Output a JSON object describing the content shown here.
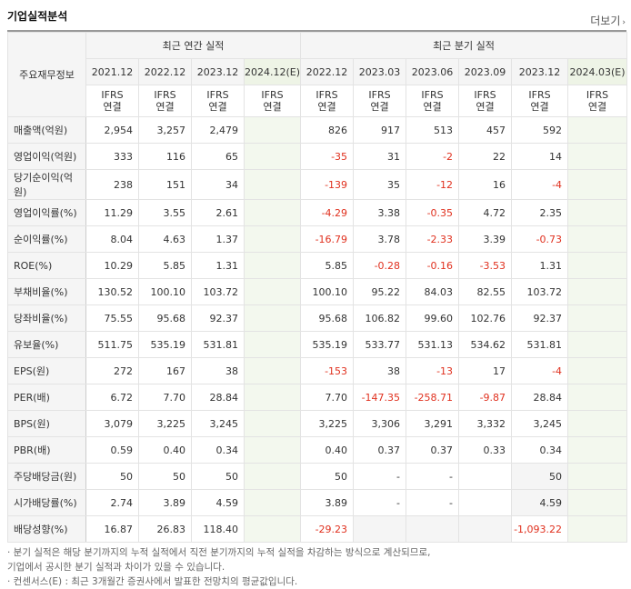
{
  "header": {
    "title": "기업실적분석",
    "more_label": "더보기",
    "more_arrow": "›"
  },
  "table": {
    "row_header": "주요재무정보",
    "annual_header": "최근 연간 실적",
    "quarter_header": "최근 분기 실적",
    "annual_periods": [
      "2021.12",
      "2022.12",
      "2023.12",
      "2024.12(E)"
    ],
    "quarter_periods": [
      "2022.12",
      "2023.03",
      "2023.06",
      "2023.09",
      "2023.12",
      "2024.03(E)"
    ],
    "ifrs_line1": "IFRS",
    "ifrs_line2": "연결",
    "rows": [
      {
        "label": "매출액(억원)",
        "values": [
          "2,954",
          "3,257",
          "2,479",
          "",
          "826",
          "917",
          "513",
          "457",
          "592",
          ""
        ]
      },
      {
        "label": "영업이익(억원)",
        "values": [
          "333",
          "116",
          "65",
          "",
          "-35",
          "31",
          "-2",
          "22",
          "14",
          ""
        ]
      },
      {
        "label": "당기순이익(억원)",
        "values": [
          "238",
          "151",
          "34",
          "",
          "-139",
          "35",
          "-12",
          "16",
          "-4",
          ""
        ]
      },
      {
        "label": "영업이익률(%)",
        "values": [
          "11.29",
          "3.55",
          "2.61",
          "",
          "-4.29",
          "3.38",
          "-0.35",
          "4.72",
          "2.35",
          ""
        ]
      },
      {
        "label": "순이익률(%)",
        "values": [
          "8.04",
          "4.63",
          "1.37",
          "",
          "-16.79",
          "3.78",
          "-2.33",
          "3.39",
          "-0.73",
          ""
        ]
      },
      {
        "label": "ROE(%)",
        "values": [
          "10.29",
          "5.85",
          "1.31",
          "",
          "5.85",
          "-0.28",
          "-0.16",
          "-3.53",
          "1.31",
          ""
        ]
      },
      {
        "label": "부채비율(%)",
        "values": [
          "130.52",
          "100.10",
          "103.72",
          "",
          "100.10",
          "95.22",
          "84.03",
          "82.55",
          "103.72",
          ""
        ]
      },
      {
        "label": "당좌비율(%)",
        "values": [
          "75.55",
          "95.68",
          "92.37",
          "",
          "95.68",
          "106.82",
          "99.60",
          "102.76",
          "92.37",
          ""
        ]
      },
      {
        "label": "유보율(%)",
        "values": [
          "511.75",
          "535.19",
          "531.81",
          "",
          "535.19",
          "533.77",
          "531.13",
          "534.62",
          "531.81",
          ""
        ]
      },
      {
        "label": "EPS(원)",
        "values": [
          "272",
          "167",
          "38",
          "",
          "-153",
          "38",
          "-13",
          "17",
          "-4",
          ""
        ]
      },
      {
        "label": "PER(배)",
        "values": [
          "6.72",
          "7.70",
          "28.84",
          "",
          "7.70",
          "-147.35",
          "-258.71",
          "-9.87",
          "28.84",
          ""
        ]
      },
      {
        "label": "BPS(원)",
        "values": [
          "3,079",
          "3,225",
          "3,245",
          "",
          "3,225",
          "3,306",
          "3,291",
          "3,332",
          "3,245",
          ""
        ]
      },
      {
        "label": "PBR(배)",
        "values": [
          "0.59",
          "0.40",
          "0.34",
          "",
          "0.40",
          "0.37",
          "0.37",
          "0.33",
          "0.34",
          ""
        ]
      },
      {
        "label": "주당배당금(원)",
        "values": [
          "50",
          "50",
          "50",
          "",
          "50",
          "-",
          "-",
          "",
          "50",
          ""
        ]
      },
      {
        "label": "시가배당률(%)",
        "values": [
          "2.74",
          "3.89",
          "4.59",
          "",
          "3.89",
          "-",
          "-",
          "",
          "4.59",
          ""
        ]
      },
      {
        "label": "배당성향(%)",
        "values": [
          "16.87",
          "26.83",
          "118.40",
          "",
          "-29.23",
          "",
          "",
          "",
          "-1,093.22",
          ""
        ]
      }
    ]
  },
  "notes": [
    "· 분기 실적은 해당 분기까지의 누적 실적에서 직전 분기까지의 누적 실적을 차감하는 방식으로 계산되므로,",
    "  기업에서 공시한 분기 실적과 차이가 있을 수 있습니다.",
    "· 컨센서스(E) : 최근 3개월간 증권사에서 발표한 전망치의 평균값입니다."
  ]
}
